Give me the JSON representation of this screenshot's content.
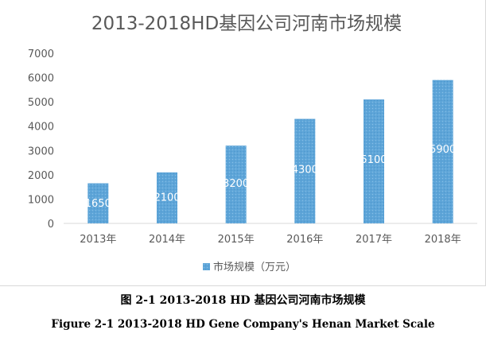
{
  "chart_data": {
    "type": "bar",
    "title": "2013-2018HD基因公司河南市场规模",
    "categories": [
      "2013年",
      "2014年",
      "2015年",
      "2016年",
      "2017年",
      "2018年"
    ],
    "series": [
      {
        "name": "市场规模（万元）",
        "values": [
          1650,
          2100,
          3200,
          4300,
          5100,
          5900
        ],
        "color": "#5ea5d8"
      }
    ],
    "ylim": [
      0,
      7000
    ],
    "yticks": [
      0,
      1000,
      2000,
      3000,
      4000,
      5000,
      6000,
      7000
    ],
    "grid": false,
    "legend": "bottom",
    "xlabel": "",
    "ylabel": ""
  },
  "captions": {
    "cn": "图  2-1 2013-2018 HD 基因公司河南市场规模",
    "en": "Figure 2-1 2013-2018 HD Gene Company's Henan Market Scale"
  }
}
